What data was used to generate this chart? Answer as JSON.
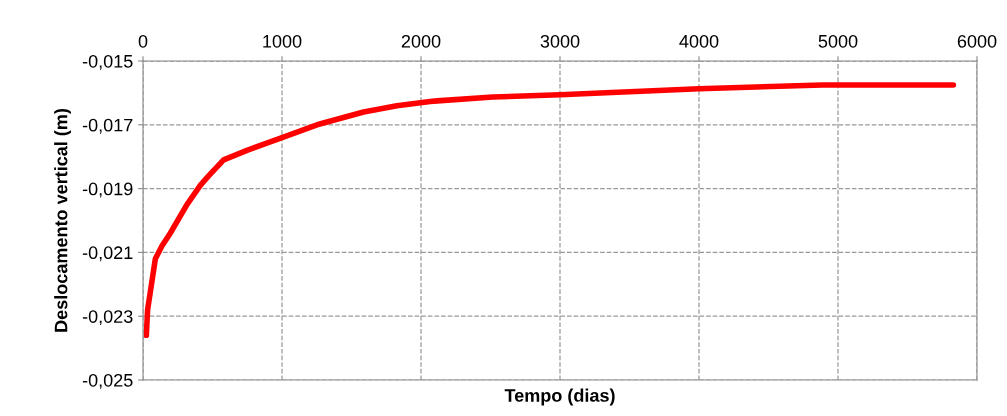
{
  "chart_data": {
    "type": "line",
    "xlabel": "Tempo (dias)",
    "ylabel": "Deslocamento vertical (m)",
    "x": [
      24,
      33,
      89,
      136,
      196,
      316,
      412,
      472,
      580,
      748,
      1000,
      1252,
      1587,
      1827,
      2066,
      2117,
      2517,
      3000,
      4000,
      4890,
      5830
    ],
    "series": [
      {
        "color": "#ff0000",
        "values": [
          -0.0236,
          -0.0228,
          -0.0212,
          -0.0208,
          -0.0204,
          -0.0195,
          -0.0189,
          -0.0186,
          -0.0181,
          -0.0178,
          -0.0174,
          -0.017,
          -0.0166,
          -0.0164,
          -0.01627,
          -0.01625,
          -0.01613,
          -0.01606,
          -0.01587,
          -0.01575,
          -0.01575
        ]
      }
    ],
    "xlim": [
      0,
      6000
    ],
    "xticks": [
      0,
      1000,
      2000,
      3000,
      4000,
      5000,
      6000
    ],
    "ylim": [
      -0.025,
      -0.015
    ],
    "yticks": [
      {
        "value": -0.025,
        "label": "-0,025"
      },
      {
        "value": -0.023,
        "label": "-0,023"
      },
      {
        "value": -0.021,
        "label": "-0,021"
      },
      {
        "value": -0.019,
        "label": "-0,019"
      },
      {
        "value": -0.017,
        "label": "-0,017"
      },
      {
        "value": -0.015,
        "label": "-0,015"
      }
    ],
    "grid": true,
    "marker": "none",
    "line_style": "solid",
    "legend": false
  }
}
